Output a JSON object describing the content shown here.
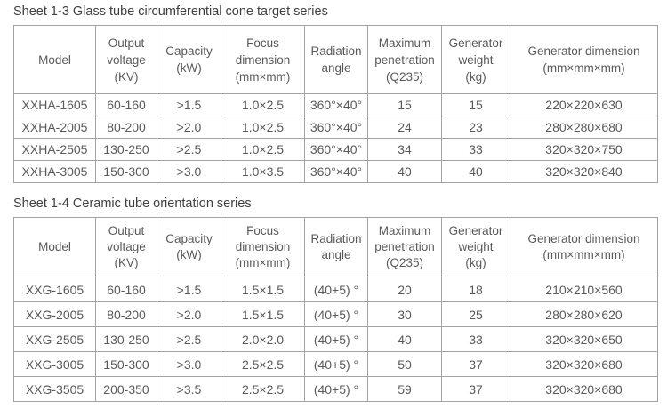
{
  "colors": {
    "border": "#a3a3a3",
    "cell_text": "#595959",
    "title_text": "#3f3f3f",
    "background": "#ffffff"
  },
  "tables": [
    {
      "title": "Sheet 1-3 Glass tube circumferential cone target series",
      "columns": [
        "Model",
        "Output\nvoltage\n(KV)",
        "Capacity\n(kW)",
        "Focus\ndimension\n(mm×mm)",
        "Radiation\nangle",
        "Maximum\npenetration\n(Q235)",
        "Generator\nweight\n(kg)",
        "Generator dimension\n(mm×mm×mm)"
      ],
      "rows": [
        [
          "XXHA-1605",
          "60-160",
          ">1.5",
          "1.0×2.5",
          "360°×40°",
          "15",
          "15",
          "220×220×630"
        ],
        [
          "XXHA-2005",
          "80-200",
          ">2.0",
          "1.0×2.5",
          "360°×40°",
          "24",
          "23",
          "280×280×680"
        ],
        [
          "XXHA-2505",
          "130-250",
          ">2.5",
          "1.0×2.5",
          "360°×40°",
          "34",
          "33",
          "320×320×750"
        ],
        [
          "XXHA-3005",
          "150-300",
          ">3.0",
          "1.0×3.5",
          "360°×40°",
          "40",
          "40",
          "320×320×840"
        ]
      ]
    },
    {
      "title": "Sheet 1-4 Ceramic tube orientation series",
      "columns": [
        "Model",
        "Output\nvoltage\n(KV)",
        "Capacity\n(kW)",
        "Focus\ndimension\n(mm×mm)",
        "Radiation\nangle",
        "Maximum\npenetration\n(Q235)",
        "Generator\nweight\n(kg)",
        "Generator dimension\n(mm×mm×mm)"
      ],
      "rows": [
        [
          "XXG-1605",
          "60-160",
          ">1.5",
          "1.5×1.5",
          "(40+5) °",
          "20",
          "18",
          "210×210×560"
        ],
        [
          "XXG-2005",
          "80-200",
          ">2.0",
          "1.5×1.5",
          "(40+5) °",
          "30",
          "25",
          "280×280×620"
        ],
        [
          "XXG-2505",
          "130-250",
          ">2.5",
          "2.0×2.0",
          "(40+5) °",
          "40",
          "33",
          "320×320×650"
        ],
        [
          "XXG-3005",
          "150-300",
          ">3.0",
          "2.5×2.5",
          "(40+5) °",
          "50",
          "37",
          "320×320×680"
        ],
        [
          "XXG-3505",
          "200-350",
          ">3.5",
          "2.5×2.5",
          "(40+5) °",
          "59",
          "37",
          "320×320×680"
        ]
      ]
    }
  ]
}
